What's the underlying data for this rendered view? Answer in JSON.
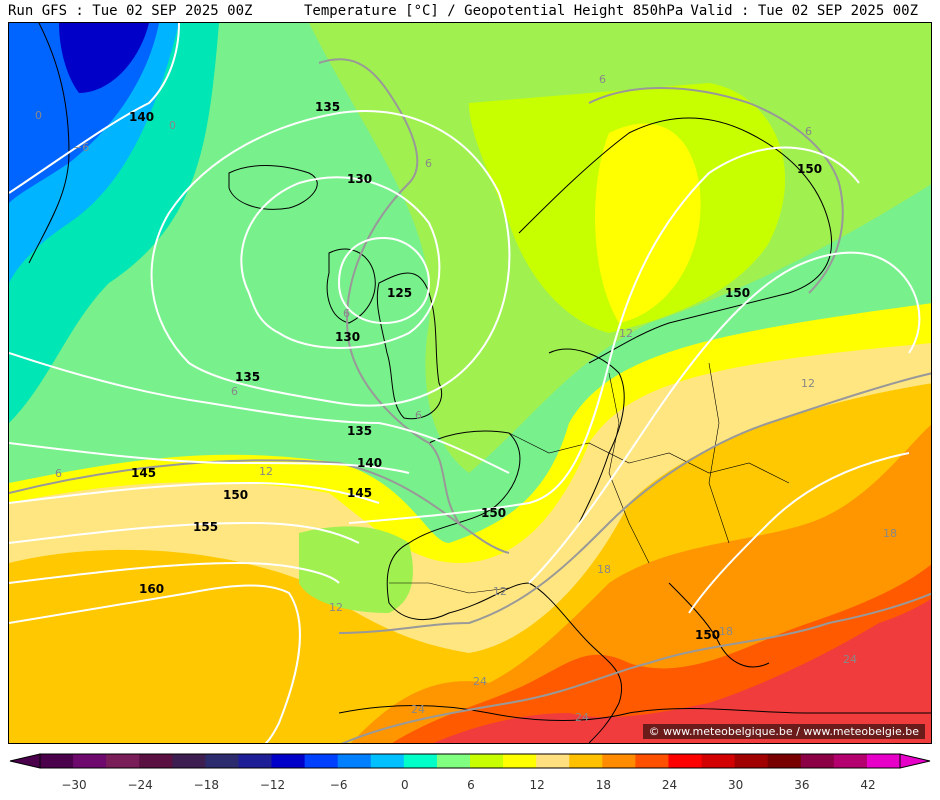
{
  "header": {
    "left": "Run GFS : Tue 02 SEP 2025 00Z",
    "center": "Temperature [°C] / Geopotential Height 850hPa",
    "right": "Valid : Tue 02 SEP 2025 00Z"
  },
  "credit": "© www.meteobelgique.be / www.meteobelgie.be",
  "colorbar": {
    "colors": [
      "#4b004b",
      "#6e0a6e",
      "#7a1e5a",
      "#5a1040",
      "#3c1e50",
      "#2b2b6e",
      "#1e1e96",
      "#0000c8",
      "#0040ff",
      "#0080ff",
      "#00c0ff",
      "#00ffc8",
      "#80ff80",
      "#c8ff00",
      "#ffff00",
      "#ffe080",
      "#ffc000",
      "#ff8c00",
      "#ff5000",
      "#ff0000",
      "#d20000",
      "#a00000",
      "#780000",
      "#8c0046",
      "#b4006e",
      "#e600c8"
    ],
    "ticks": [
      "−30",
      "−24",
      "−18",
      "−12",
      "−6",
      "0",
      "6",
      "12",
      "18",
      "24",
      "30",
      "36",
      "42"
    ]
  },
  "height_labels": [
    "140",
    "135",
    "130",
    "125",
    "130",
    "135",
    "135",
    "140",
    "145",
    "150",
    "145",
    "150",
    "155",
    "160",
    "150",
    "150",
    "150"
  ],
  "temp_labels": [
    "0",
    "0",
    "−6",
    "6",
    "6",
    "6",
    "6",
    "6",
    "6",
    "6",
    "12",
    "12",
    "12",
    "12",
    "12",
    "18",
    "18",
    "18",
    "24",
    "24",
    "24",
    "24"
  ]
}
